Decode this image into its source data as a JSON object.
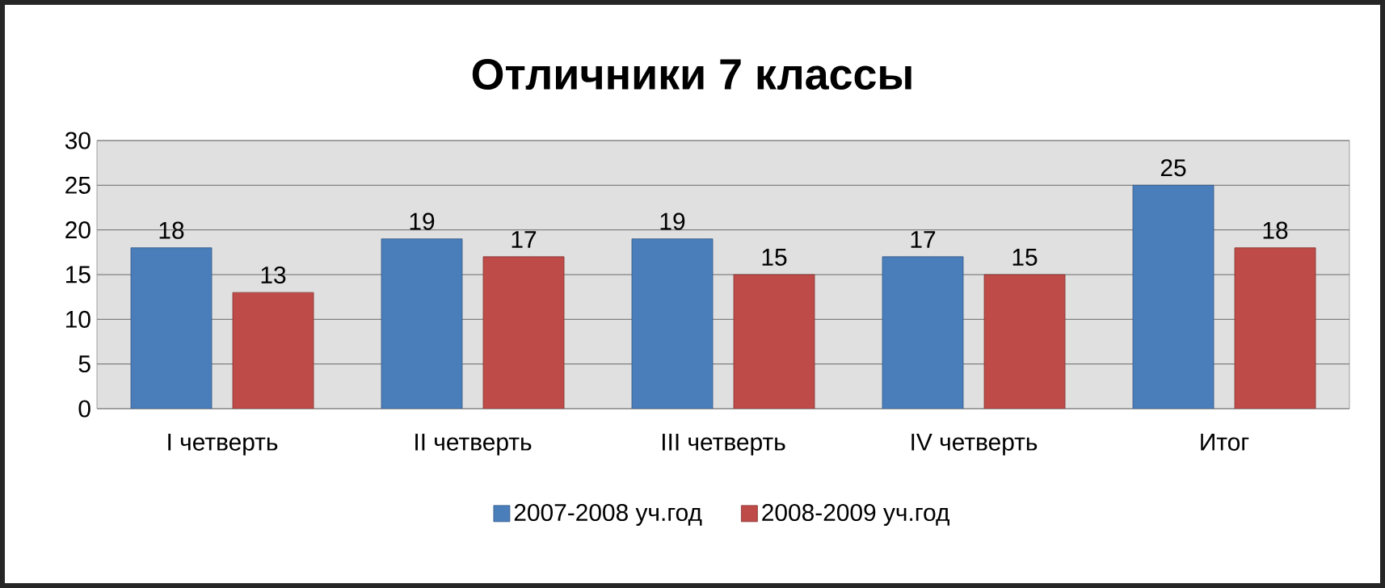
{
  "chart_data": {
    "type": "bar",
    "title": "Отличники 7 классы",
    "categories": [
      "I четверть",
      "II четверть",
      "III четверть",
      "IV четверть",
      "Итог"
    ],
    "series": [
      {
        "name": "2007-2008 уч.год",
        "color": "#4a7ebb",
        "values": [
          18,
          19,
          19,
          17,
          25
        ]
      },
      {
        "name": "2008-2009 уч.год",
        "color": "#be4b48",
        "values": [
          13,
          17,
          15,
          15,
          18
        ]
      }
    ],
    "ylim": [
      0,
      30
    ],
    "yticks": [
      0,
      5,
      10,
      15,
      20,
      25,
      30
    ],
    "grid": "y",
    "legend": "bottom",
    "data_labels": true
  }
}
